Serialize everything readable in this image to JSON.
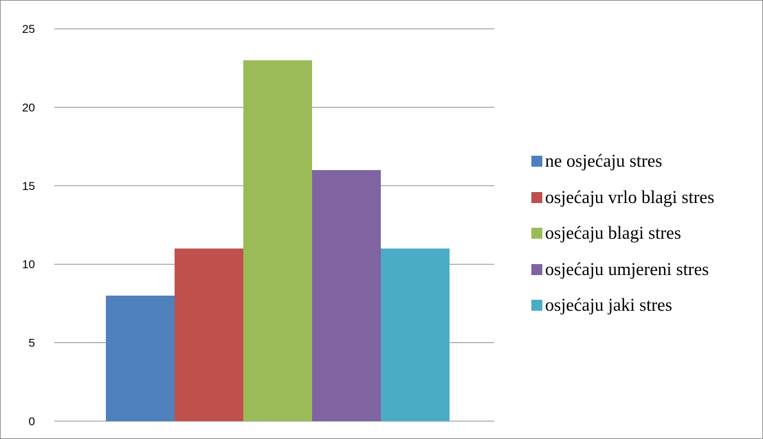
{
  "chart_data": {
    "type": "bar",
    "title": "",
    "xlabel": "",
    "ylabel": "",
    "ylim": [
      0,
      25
    ],
    "yticks": [
      0,
      5,
      10,
      15,
      20,
      25
    ],
    "grid": true,
    "legend_position": "right",
    "series": [
      {
        "name": "ne osjećaju stres",
        "value": 8,
        "color": "#4F81BD"
      },
      {
        "name": "osjećaju vrlo blagi stres",
        "value": 11,
        "color": "#C0504D"
      },
      {
        "name": "osjećaju blagi stres",
        "value": 23,
        "color": "#9BBB59"
      },
      {
        "name": "osjećaju umjereni stres",
        "value": 16,
        "color": "#8064A2"
      },
      {
        "name": "osjećaju jaki stres",
        "value": 11,
        "color": "#4BACC6"
      }
    ]
  }
}
